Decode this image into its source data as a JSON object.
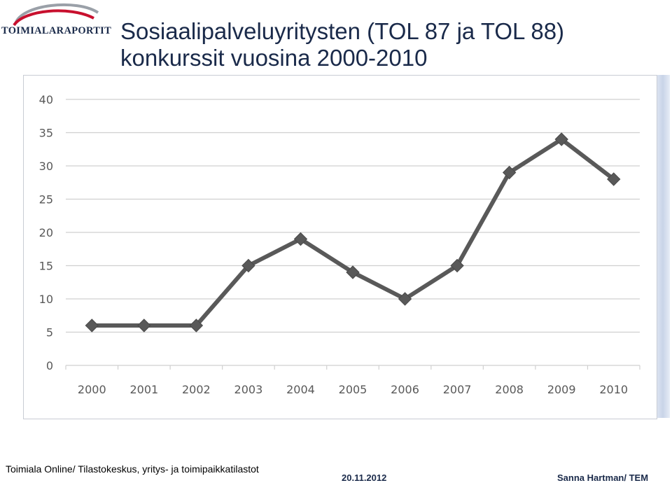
{
  "logo": {
    "text": "TOIMIALARAPORTIT",
    "colors": {
      "swoosh_red": "#c8102e",
      "swoosh_grey": "#9aa0a8",
      "text": "#1a2a4a"
    }
  },
  "title": {
    "line1": "Sosiaalipalveluyritysten (TOL 87 ja TOL 88)",
    "line2": "konkurssit vuosina 2000-2010"
  },
  "chart_data": {
    "type": "line",
    "title": "",
    "xlabel": "",
    "ylabel": "",
    "categories": [
      "2000",
      "2001",
      "2002",
      "2003",
      "2004",
      "2005",
      "2006",
      "2007",
      "2008",
      "2009",
      "2010"
    ],
    "values": [
      6,
      6,
      6,
      15,
      19,
      14,
      10,
      15,
      29,
      34,
      28
    ],
    "ylim": [
      0,
      40
    ],
    "yticks": [
      0,
      5,
      10,
      15,
      20,
      25,
      30,
      35,
      40
    ],
    "grid": true,
    "legend": "none",
    "marker": "diamond",
    "line_color": "#595959",
    "grid_color": "#d0d0d0"
  },
  "footer": {
    "source": "Toimiala Online/ Tilastokeskus, yritys- ja toimipaikkatilastot",
    "date": "20.11.2012",
    "author": "Sanna Hartman/ TEM"
  }
}
